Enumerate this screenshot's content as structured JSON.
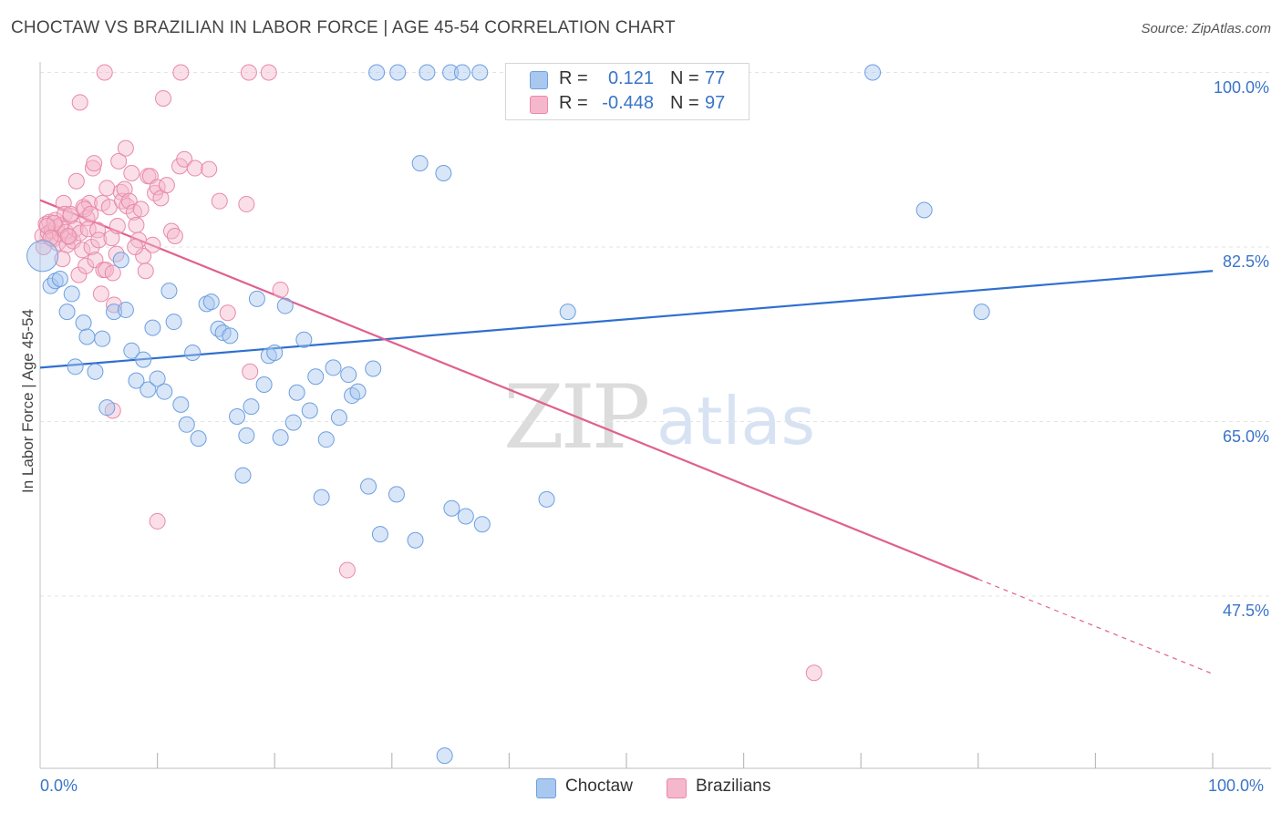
{
  "title": "CHOCTAW VS BRAZILIAN IN LABOR FORCE | AGE 45-54 CORRELATION CHART",
  "source": "Source: ZipAtlas.com",
  "watermark": {
    "zip": "ZIP",
    "atlas": "atlas"
  },
  "legend": {
    "r_label": "R =",
    "n_label": "N =",
    "rows": [
      {
        "r": "0.121",
        "n": "77",
        "color": "#a9c8f0"
      },
      {
        "r": "-0.448",
        "n": "97",
        "color": "#f5b7cb"
      }
    ]
  },
  "bottom_legend": [
    {
      "label": "Choctaw",
      "color": "#a9c8f0"
    },
    {
      "label": "Brazilians",
      "color": "#f5b7cb"
    }
  ],
  "colors": {
    "choctaw_fill": "rgba(169,200,240,0.45)",
    "choctaw_stroke": "#6d9fe0",
    "choctaw_line": "#2f6fcf",
    "brazil_fill": "rgba(245,183,203,0.45)",
    "brazil_stroke": "#e88aa8",
    "brazil_line": "#e0608c",
    "axis_label": "#3a74c8"
  },
  "chart_data": {
    "type": "scatter",
    "title": "CHOCTAW VS BRAZILIAN IN LABOR FORCE | AGE 45-54 CORRELATION CHART",
    "xlabel": "",
    "ylabel": "In Labor Force | Age 45-54",
    "xlim": [
      0,
      100
    ],
    "ylim": [
      30,
      100
    ],
    "x_tick_labels": [
      "0.0%",
      "100.0%"
    ],
    "y_ticks": [
      100.0,
      82.5,
      65.0,
      47.5
    ],
    "y_tick_labels": [
      "100.0%",
      "82.5%",
      "65.0%",
      "47.5%"
    ],
    "grid": true,
    "legend_position": "top-center",
    "series": [
      {
        "name": "Choctaw",
        "r": 0.121,
        "n": 77,
        "trend": {
          "x0": 0,
          "y0": 70.4,
          "x1": 100,
          "y1": 80.1
        },
        "points": [
          [
            0.2,
            81.6
          ],
          [
            0.9,
            78.6
          ],
          [
            1.3,
            79.1
          ],
          [
            1.7,
            79.3
          ],
          [
            2.3,
            76.0
          ],
          [
            2.7,
            77.8
          ],
          [
            3.0,
            70.5
          ],
          [
            3.7,
            74.9
          ],
          [
            4.0,
            73.5
          ],
          [
            4.7,
            70.0
          ],
          [
            5.3,
            73.3
          ],
          [
            5.7,
            66.4
          ],
          [
            6.3,
            76.0
          ],
          [
            6.9,
            81.2
          ],
          [
            7.3,
            76.2
          ],
          [
            7.8,
            72.1
          ],
          [
            8.2,
            69.1
          ],
          [
            8.8,
            71.2
          ],
          [
            9.2,
            68.2
          ],
          [
            9.6,
            74.4
          ],
          [
            10.0,
            69.3
          ],
          [
            10.6,
            68.0
          ],
          [
            11.0,
            78.1
          ],
          [
            11.4,
            75.0
          ],
          [
            12.0,
            66.7
          ],
          [
            12.5,
            64.7
          ],
          [
            13.0,
            71.9
          ],
          [
            13.5,
            63.3
          ],
          [
            14.2,
            76.8
          ],
          [
            14.6,
            77.0
          ],
          [
            15.2,
            74.3
          ],
          [
            15.6,
            73.9
          ],
          [
            16.2,
            73.6
          ],
          [
            16.8,
            65.5
          ],
          [
            17.3,
            59.6
          ],
          [
            17.6,
            63.6
          ],
          [
            18.0,
            66.5
          ],
          [
            18.5,
            77.3
          ],
          [
            19.1,
            68.7
          ],
          [
            19.5,
            71.6
          ],
          [
            20.0,
            71.9
          ],
          [
            20.5,
            63.4
          ],
          [
            20.9,
            76.6
          ],
          [
            21.6,
            64.9
          ],
          [
            21.9,
            67.9
          ],
          [
            22.5,
            73.2
          ],
          [
            23.0,
            66.1
          ],
          [
            23.5,
            69.5
          ],
          [
            24.0,
            57.4
          ],
          [
            24.4,
            63.2
          ],
          [
            25.0,
            70.4
          ],
          [
            25.5,
            65.4
          ],
          [
            26.3,
            69.7
          ],
          [
            26.6,
            67.6
          ],
          [
            27.1,
            68.0
          ],
          [
            28.0,
            58.5
          ],
          [
            28.4,
            70.3
          ],
          [
            29.0,
            53.7
          ],
          [
            30.4,
            57.7
          ],
          [
            32.0,
            53.1
          ],
          [
            32.4,
            90.9
          ],
          [
            34.4,
            89.9
          ],
          [
            35.1,
            56.3
          ],
          [
            36.3,
            55.5
          ],
          [
            37.7,
            54.7
          ],
          [
            43.2,
            57.2
          ],
          [
            45.0,
            76.0
          ],
          [
            75.4,
            86.2
          ],
          [
            80.3,
            76.0
          ],
          [
            28.7,
            100.0
          ],
          [
            30.5,
            100.0
          ],
          [
            33.0,
            100.0
          ],
          [
            35.0,
            100.0
          ],
          [
            36.0,
            100.0
          ],
          [
            37.5,
            100.0
          ],
          [
            71.0,
            100.0
          ],
          [
            34.5,
            31.5
          ]
        ]
      },
      {
        "name": "Brazilians",
        "r": -0.448,
        "n": 97,
        "trend": {
          "x0": 0,
          "y0": 87.2,
          "x1": 80,
          "y1": 49.2,
          "dash_to": {
            "x": 100,
            "y": 39.7
          }
        },
        "points": [
          [
            0.2,
            83.6
          ],
          [
            0.3,
            82.5
          ],
          [
            0.5,
            84.8
          ],
          [
            0.7,
            83.9
          ],
          [
            0.8,
            85.0
          ],
          [
            1.0,
            84.1
          ],
          [
            1.1,
            83.3
          ],
          [
            1.3,
            85.2
          ],
          [
            1.4,
            84.5
          ],
          [
            1.5,
            82.9
          ],
          [
            1.7,
            83.8
          ],
          [
            1.8,
            84.7
          ],
          [
            2.0,
            86.9
          ],
          [
            2.1,
            85.8
          ],
          [
            2.2,
            84.0
          ],
          [
            2.3,
            82.7
          ],
          [
            2.5,
            83.5
          ],
          [
            2.6,
            85.6
          ],
          [
            2.8,
            83.1
          ],
          [
            3.0,
            84.3
          ],
          [
            3.1,
            89.1
          ],
          [
            3.3,
            79.7
          ],
          [
            3.4,
            83.9
          ],
          [
            3.6,
            82.2
          ],
          [
            3.7,
            86.5
          ],
          [
            3.9,
            80.6
          ],
          [
            4.0,
            85.4
          ],
          [
            4.1,
            84.3
          ],
          [
            4.2,
            86.9
          ],
          [
            4.4,
            82.5
          ],
          [
            4.5,
            90.4
          ],
          [
            4.6,
            90.9
          ],
          [
            4.7,
            81.2
          ],
          [
            4.9,
            84.2
          ],
          [
            5.0,
            83.2
          ],
          [
            5.2,
            77.8
          ],
          [
            5.3,
            86.9
          ],
          [
            5.4,
            80.2
          ],
          [
            5.6,
            80.2
          ],
          [
            5.7,
            88.4
          ],
          [
            5.9,
            86.5
          ],
          [
            6.1,
            83.4
          ],
          [
            6.2,
            79.9
          ],
          [
            6.3,
            76.7
          ],
          [
            6.5,
            81.8
          ],
          [
            6.7,
            91.1
          ],
          [
            6.9,
            88.0
          ],
          [
            7.0,
            87.1
          ],
          [
            7.2,
            88.3
          ],
          [
            7.3,
            92.4
          ],
          [
            7.4,
            86.6
          ],
          [
            7.6,
            87.1
          ],
          [
            7.8,
            89.9
          ],
          [
            8.0,
            86.0
          ],
          [
            8.2,
            84.7
          ],
          [
            8.4,
            83.2
          ],
          [
            8.6,
            86.3
          ],
          [
            8.8,
            81.6
          ],
          [
            9.0,
            80.1
          ],
          [
            9.2,
            89.6
          ],
          [
            9.4,
            89.6
          ],
          [
            9.6,
            82.7
          ],
          [
            9.8,
            87.9
          ],
          [
            10.0,
            88.5
          ],
          [
            10.3,
            87.4
          ],
          [
            10.8,
            88.7
          ],
          [
            11.2,
            84.1
          ],
          [
            11.5,
            83.6
          ],
          [
            11.9,
            90.6
          ],
          [
            12.3,
            91.3
          ],
          [
            13.2,
            90.4
          ],
          [
            14.4,
            90.3
          ],
          [
            15.3,
            87.1
          ],
          [
            16.0,
            75.9
          ],
          [
            17.6,
            86.8
          ],
          [
            17.9,
            70.0
          ],
          [
            20.5,
            78.2
          ],
          [
            3.4,
            97.0
          ],
          [
            5.5,
            100.0
          ],
          [
            10.5,
            97.4
          ],
          [
            12.0,
            100.0
          ],
          [
            17.8,
            100.0
          ],
          [
            19.5,
            100.0
          ],
          [
            2.6,
            85.8
          ],
          [
            1.9,
            81.3
          ],
          [
            6.2,
            66.1
          ],
          [
            10.0,
            55.0
          ],
          [
            26.2,
            50.1
          ],
          [
            66.0,
            39.8
          ],
          [
            1.2,
            84.9
          ],
          [
            0.6,
            84.6
          ],
          [
            2.4,
            83.6
          ],
          [
            3.8,
            86.3
          ],
          [
            4.3,
            85.8
          ],
          [
            6.6,
            84.6
          ],
          [
            8.1,
            82.5
          ],
          [
            0.9,
            83.4
          ]
        ]
      }
    ]
  }
}
